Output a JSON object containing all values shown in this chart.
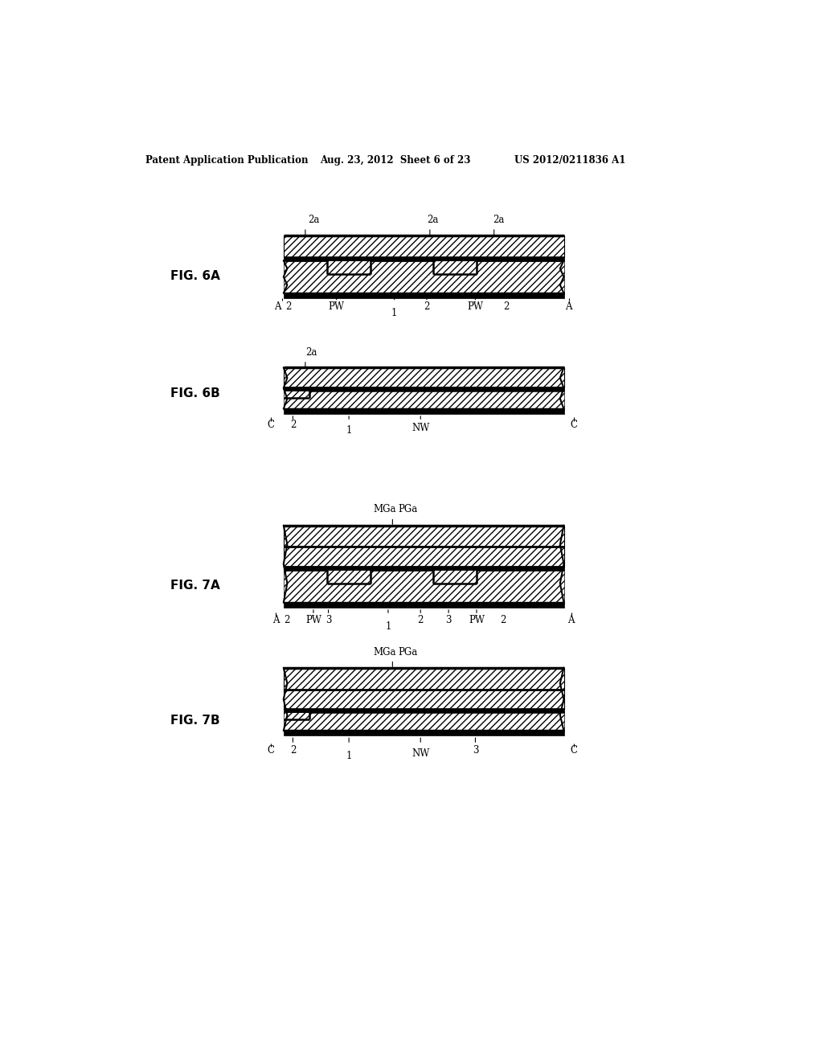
{
  "bg_color": "#ffffff",
  "header_left": "Patent Application Publication",
  "header_mid": "Aug. 23, 2012  Sheet 6 of 23",
  "header_right": "US 2012/0211836 A1",
  "fig6a_label": "FIG. 6A",
  "fig6b_label": "FIG. 6B",
  "fig7a_label": "FIG. 7A",
  "fig7b_label": "FIG. 7B"
}
